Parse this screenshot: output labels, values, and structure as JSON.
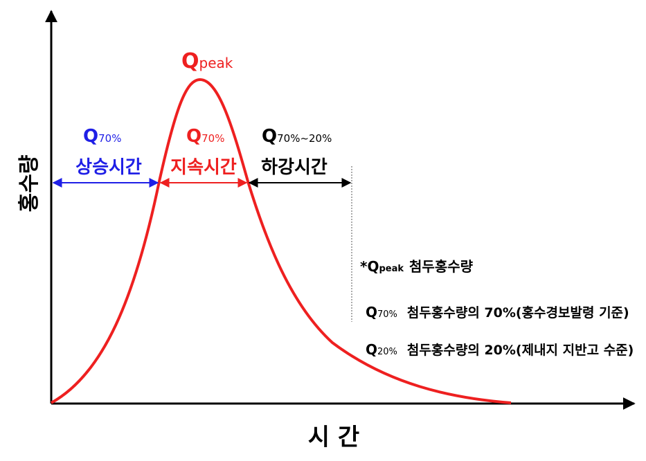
{
  "axes": {
    "x_label": "시 간",
    "y_label": "홍수량"
  },
  "peak_label": {
    "q": "Q",
    "sub": "peak"
  },
  "segments": {
    "rise": {
      "q": "Q",
      "sub": "70%",
      "label": "상승시간",
      "color": "#1f1fe6"
    },
    "duration": {
      "q": "Q",
      "sub": "70%",
      "label": "지속시간",
      "color": "#ee2020"
    },
    "fall": {
      "q": "Q",
      "sub": "70%~20%",
      "label": "하강시간",
      "color": "#000000"
    }
  },
  "notes": [
    {
      "prefix": "*",
      "q": "Q",
      "sub": "peak",
      "text": "첨두홍수량"
    },
    {
      "prefix": "",
      "q": "Q",
      "sub": "70%",
      "text": "첨두홍수량의 70%(홍수경보발령 기준)"
    },
    {
      "prefix": "",
      "q": "Q",
      "sub": "20%",
      "text": "첨두홍수량의 20%(제내지 지반고 수준)"
    }
  ],
  "colors": {
    "curve": "#ee2020",
    "axis": "#000000",
    "rise_arrow": "#1f1fe6",
    "duration_arrow": "#ee2020",
    "fall_arrow": "#000000"
  }
}
